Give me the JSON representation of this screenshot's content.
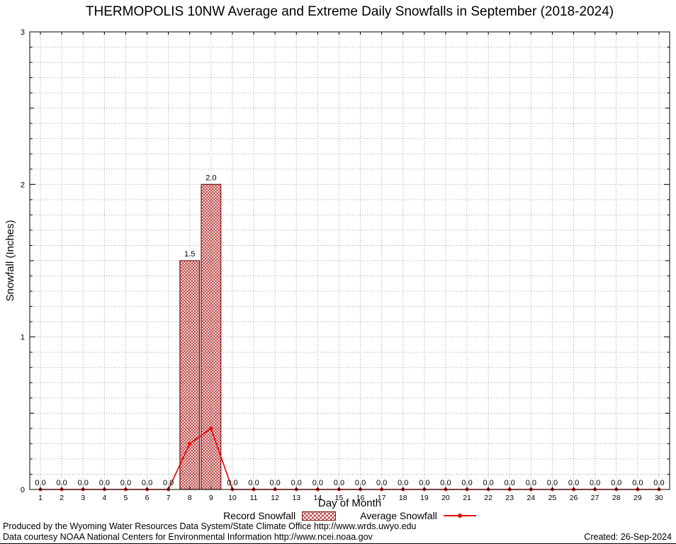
{
  "page": {
    "footer_line1": "Produced by the Wyoming Water Resources Data System/State Climate Office http://www.wrds.uwyo.edu",
    "footer_line2": "Data courtesy NOAA National Centers for Environmental Information http://www.ncei.noaa.gov",
    "created_label": "Created: 26-Sep-2024"
  },
  "chart_data": {
    "type": "bar",
    "title": "THERMOPOLIS 10NW Average and Extreme Daily Snowfalls in September (2018-2024)",
    "xlabel": "Day of Month",
    "ylabel": "Snowfall (Inches)",
    "ylim": [
      0,
      3
    ],
    "yticks": [
      0,
      1,
      2,
      3
    ],
    "grid": {
      "show": true,
      "y_minor": 0.1
    },
    "legend_position": "bottom",
    "categories": [
      1,
      2,
      3,
      4,
      5,
      6,
      7,
      8,
      9,
      10,
      11,
      12,
      13,
      14,
      15,
      16,
      17,
      18,
      19,
      20,
      21,
      22,
      23,
      24,
      25,
      26,
      27,
      28,
      29,
      30
    ],
    "series": [
      {
        "name": "Record Snowfall",
        "type": "bar",
        "color": "#b22222",
        "border_color": "#7f1010",
        "values": [
          0,
          0,
          0,
          0,
          0,
          0,
          0,
          1.5,
          2.0,
          0,
          0,
          0,
          0,
          0,
          0,
          0,
          0,
          0,
          0,
          0,
          0,
          0,
          0,
          0,
          0,
          0,
          0,
          0,
          0,
          0
        ]
      },
      {
        "name": "Average Snowfall",
        "type": "line",
        "color": "#e60000",
        "values": [
          0,
          0,
          0,
          0,
          0,
          0,
          0,
          0.3,
          0.4,
          0,
          0,
          0,
          0,
          0,
          0,
          0,
          0,
          0,
          0,
          0,
          0,
          0,
          0,
          0,
          0,
          0,
          0,
          0,
          0,
          0
        ]
      }
    ],
    "value_labels_series": 0,
    "value_labels_format": "one_decimal"
  }
}
